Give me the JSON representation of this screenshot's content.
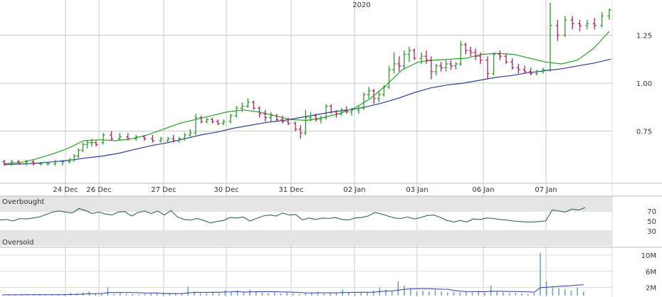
{
  "chart_data": [
    {
      "type": "ohlc",
      "year_label": "2020",
      "x_tick_labels": [
        "24 Dec",
        "26 Dec",
        "27 Dec",
        "30 Dec",
        "31 Dec",
        "02 Jan",
        "03 Jan",
        "06 Jan",
        "07 Jan"
      ],
      "y_tick_labels": [
        "1.25",
        "1.00",
        "0.75"
      ],
      "y_ticks": [
        1.25,
        1.0,
        0.75
      ],
      "ylim": [
        0.55,
        1.43
      ],
      "grid": true,
      "colors": {
        "up": "#2a9a2a",
        "down": "#b0205a",
        "ma_short": "#28a028",
        "ma_long": "#2b3f9e",
        "grid": "#c8c8c8"
      },
      "sessions": [
        {
          "label": "",
          "bars": [
            [
              0.59,
              0.6,
              0.57,
              0.58
            ],
            [
              0.58,
              0.6,
              0.57,
              0.59
            ],
            [
              0.59,
              0.6,
              0.58,
              0.58
            ],
            [
              0.58,
              0.6,
              0.57,
              0.59
            ],
            [
              0.59,
              0.6,
              0.57,
              0.58
            ],
            [
              0.58,
              0.59,
              0.57,
              0.58
            ],
            [
              0.58,
              0.59,
              0.57,
              0.58
            ],
            [
              0.58,
              0.6,
              0.57,
              0.59
            ],
            [
              0.59,
              0.6,
              0.57,
              0.59
            ]
          ]
        },
        {
          "label": "24 Dec",
          "bars": [
            [
              0.59,
              0.61,
              0.58,
              0.6
            ],
            [
              0.6,
              0.63,
              0.59,
              0.62
            ],
            [
              0.62,
              0.66,
              0.61,
              0.65
            ],
            [
              0.65,
              0.69,
              0.64,
              0.68
            ],
            [
              0.68,
              0.7,
              0.66,
              0.69
            ],
            [
              0.69,
              0.71,
              0.67,
              0.69
            ],
            [
              0.69,
              0.7,
              0.67,
              0.68
            ]
          ]
        },
        {
          "label": "26 Dec",
          "bars": [
            [
              0.69,
              0.74,
              0.68,
              0.73
            ],
            [
              0.73,
              0.75,
              0.7,
              0.71
            ],
            [
              0.71,
              0.74,
              0.7,
              0.72
            ],
            [
              0.72,
              0.74,
              0.7,
              0.71
            ],
            [
              0.71,
              0.73,
              0.7,
              0.72
            ],
            [
              0.72,
              0.73,
              0.7,
              0.71
            ],
            [
              0.71,
              0.73,
              0.69,
              0.7
            ],
            [
              0.7,
              0.72,
              0.69,
              0.71
            ]
          ]
        },
        {
          "label": "27 Dec",
          "bars": [
            [
              0.7,
              0.72,
              0.69,
              0.71
            ],
            [
              0.71,
              0.73,
              0.69,
              0.7
            ],
            [
              0.7,
              0.72,
              0.69,
              0.71
            ],
            [
              0.71,
              0.74,
              0.7,
              0.73
            ],
            [
              0.73,
              0.76,
              0.72,
              0.74
            ],
            [
              0.74,
              0.84,
              0.73,
              0.82
            ],
            [
              0.82,
              0.83,
              0.79,
              0.8
            ],
            [
              0.8,
              0.82,
              0.79,
              0.81
            ],
            [
              0.81,
              0.82,
              0.79,
              0.8
            ],
            [
              0.8,
              0.81,
              0.78,
              0.79
            ],
            [
              0.79,
              0.81,
              0.78,
              0.8
            ]
          ]
        },
        {
          "label": "30 Dec",
          "bars": [
            [
              0.8,
              0.84,
              0.79,
              0.83
            ],
            [
              0.83,
              0.88,
              0.82,
              0.87
            ],
            [
              0.87,
              0.9,
              0.85,
              0.88
            ],
            [
              0.88,
              0.92,
              0.87,
              0.9
            ],
            [
              0.9,
              0.91,
              0.86,
              0.87
            ],
            [
              0.87,
              0.88,
              0.82,
              0.84
            ],
            [
              0.84,
              0.86,
              0.8,
              0.82
            ],
            [
              0.82,
              0.85,
              0.8,
              0.83
            ],
            [
              0.83,
              0.84,
              0.8,
              0.81
            ],
            [
              0.81,
              0.83,
              0.79,
              0.8
            ],
            [
              0.8,
              0.82,
              0.78,
              0.79
            ]
          ]
        },
        {
          "label": "31 Dec",
          "bars": [
            [
              0.79,
              0.8,
              0.75,
              0.76
            ],
            [
              0.76,
              0.78,
              0.71,
              0.74
            ],
            [
              0.74,
              0.86,
              0.73,
              0.82
            ],
            [
              0.82,
              0.85,
              0.8,
              0.83
            ],
            [
              0.83,
              0.84,
              0.8,
              0.81
            ],
            [
              0.81,
              0.83,
              0.79,
              0.82
            ],
            [
              0.82,
              0.89,
              0.81,
              0.88
            ],
            [
              0.88,
              0.89,
              0.84,
              0.85
            ],
            [
              0.85,
              0.86,
              0.82,
              0.84
            ],
            [
              0.84,
              0.87,
              0.83,
              0.86
            ],
            [
              0.86,
              0.88,
              0.84,
              0.85
            ],
            [
              0.85,
              0.87,
              0.83,
              0.86
            ]
          ]
        },
        {
          "label": "02 Jan",
          "bars": [
            [
              0.86,
              0.88,
              0.84,
              0.87
            ],
            [
              0.87,
              0.95,
              0.86,
              0.94
            ],
            [
              0.94,
              0.98,
              0.92,
              0.96
            ],
            [
              0.96,
              0.97,
              0.89,
              0.92
            ],
            [
              0.92,
              0.96,
              0.9,
              0.94
            ],
            [
              0.94,
              0.99,
              0.93,
              0.98
            ],
            [
              0.98,
              1.09,
              0.97,
              1.07
            ],
            [
              1.07,
              1.16,
              1.05,
              1.1
            ],
            [
              1.1,
              1.14,
              1.06,
              1.09
            ],
            [
              1.09,
              1.17,
              1.07,
              1.15
            ],
            [
              1.15,
              1.19,
              1.11,
              1.17
            ],
            [
              1.17,
              1.18,
              1.12,
              1.13
            ]
          ]
        },
        {
          "label": "03 Jan",
          "bars": [
            [
              1.13,
              1.16,
              1.1,
              1.14
            ],
            [
              1.14,
              1.17,
              1.1,
              1.12
            ],
            [
              1.12,
              1.14,
              1.02,
              1.06
            ],
            [
              1.06,
              1.1,
              1.04,
              1.09
            ],
            [
              1.09,
              1.11,
              1.06,
              1.08
            ],
            [
              1.08,
              1.12,
              1.06,
              1.1
            ],
            [
              1.1,
              1.12,
              1.07,
              1.09
            ],
            [
              1.09,
              1.11,
              1.07,
              1.1
            ],
            [
              1.1,
              1.22,
              1.09,
              1.2
            ],
            [
              1.2,
              1.21,
              1.15,
              1.17
            ],
            [
              1.17,
              1.19,
              1.14,
              1.16
            ],
            [
              1.16,
              1.18,
              1.12,
              1.14
            ],
            [
              1.14,
              1.16,
              1.1,
              1.12
            ]
          ]
        },
        {
          "label": "06 Jan",
          "bars": [
            [
              1.12,
              1.14,
              1.02,
              1.05
            ],
            [
              1.05,
              1.16,
              1.04,
              1.15
            ],
            [
              1.15,
              1.17,
              1.12,
              1.14
            ],
            [
              1.14,
              1.15,
              1.1,
              1.11
            ],
            [
              1.11,
              1.13,
              1.07,
              1.08
            ],
            [
              1.08,
              1.1,
              1.05,
              1.07
            ],
            [
              1.07,
              1.09,
              1.05,
              1.06
            ],
            [
              1.06,
              1.08,
              1.04,
              1.05
            ],
            [
              1.05,
              1.07,
              1.04,
              1.06
            ],
            [
              1.06,
              1.08,
              1.05,
              1.07
            ]
          ]
        },
        {
          "label": "07 Jan",
          "bars": [
            [
              1.07,
              1.42,
              1.06,
              1.3
            ],
            [
              1.3,
              1.33,
              1.22,
              1.25
            ],
            [
              1.25,
              1.35,
              1.24,
              1.33
            ],
            [
              1.33,
              1.35,
              1.28,
              1.31
            ],
            [
              1.31,
              1.33,
              1.27,
              1.3
            ],
            [
              1.3,
              1.33,
              1.28,
              1.31
            ],
            [
              1.31,
              1.34,
              1.28,
              1.3
            ],
            [
              1.3,
              1.37,
              1.29,
              1.35
            ],
            [
              1.35,
              1.39,
              1.33,
              1.38
            ]
          ]
        }
      ],
      "ma_short": [
        0.58,
        0.586,
        0.605,
        0.63,
        0.66,
        0.7,
        0.705,
        0.7,
        0.71,
        0.73,
        0.76,
        0.79,
        0.81,
        0.83,
        0.85,
        0.86,
        0.85,
        0.83,
        0.81,
        0.806,
        0.82,
        0.84,
        0.87,
        0.92,
        0.99,
        1.07,
        1.11,
        1.12,
        1.125,
        1.13,
        1.15,
        1.155,
        1.15,
        1.13,
        1.11,
        1.1,
        1.12,
        1.18,
        1.27
      ],
      "ma_long": [
        0.575,
        0.578,
        0.583,
        0.59,
        0.598,
        0.61,
        0.62,
        0.635,
        0.655,
        0.675,
        0.69,
        0.71,
        0.73,
        0.745,
        0.765,
        0.78,
        0.795,
        0.805,
        0.82,
        0.835,
        0.85,
        0.86,
        0.875,
        0.895,
        0.92,
        0.95,
        0.975,
        0.99,
        1.0,
        1.015,
        1.03,
        1.04,
        1.055,
        1.065,
        1.075,
        1.09,
        1.105,
        1.125
      ]
    },
    {
      "type": "line",
      "label_top": "Overbought",
      "label_bottom": "Oversold",
      "y_tick_labels": [
        "70",
        "50",
        "30"
      ],
      "y_ticks": [
        70,
        50,
        30
      ],
      "ylim": [
        0,
        100
      ],
      "values": [
        52,
        53,
        50,
        55,
        54,
        56,
        58,
        63,
        68,
        70,
        68,
        66,
        75,
        71,
        65,
        68,
        64,
        62,
        68,
        69,
        60,
        67,
        70,
        65,
        70,
        62,
        71,
        58,
        53,
        52,
        55,
        51,
        46,
        49,
        51,
        57,
        56,
        58,
        50,
        55,
        60,
        62,
        60,
        66,
        62,
        63,
        52,
        56,
        53,
        56,
        55,
        57,
        53,
        52,
        56,
        57,
        60,
        67,
        64,
        60,
        56,
        55,
        58,
        54,
        57,
        61,
        62,
        57,
        51,
        48,
        51,
        48,
        54,
        53,
        56,
        55,
        53,
        52,
        50,
        49,
        48,
        48,
        49,
        50,
        72,
        70,
        68,
        74,
        72,
        77
      ]
    },
    {
      "type": "bar",
      "y_tick_labels": [
        "10M",
        "6M",
        "2M"
      ],
      "y_ticks": [
        10,
        6,
        2
      ],
      "ylim": [
        0,
        12
      ],
      "unit": "M",
      "values": [
        0.2,
        0.2,
        0.2,
        0.2,
        0.3,
        0.2,
        0.2,
        0.2,
        0.2,
        0.2,
        0.4,
        0.6,
        0.5,
        0.8,
        1.0,
        0.5,
        0.4,
        2.0,
        0.4,
        0.8,
        0.5,
        0.4,
        0.3,
        0.4,
        0.5,
        0.5,
        0.8,
        0.6,
        0.5,
        0.4,
        2.2,
        1.0,
        0.6,
        0.6,
        0.8,
        0.6,
        1.3,
        0.8,
        1.2,
        0.8,
        1.5,
        1.0,
        0.7,
        0.6,
        0.8,
        0.6,
        0.8,
        0.6,
        0.4,
        0.6,
        0.8,
        1.0,
        0.5,
        0.8,
        0.6,
        1.5,
        0.8,
        0.5,
        0.9,
        0.8,
        1.2,
        2.0,
        1.5,
        1.0,
        3.5,
        2.5,
        1.6,
        1.0,
        1.2,
        1.0,
        1.4,
        1.0,
        0.8,
        0.9,
        0.7,
        1.0,
        0.8,
        1.2,
        0.7,
        2.5,
        0.9,
        0.8,
        0.6,
        0.7,
        0.5,
        0.4,
        0.6,
        10.5,
        3.5,
        2.0,
        1.8,
        1.5,
        1.2,
        2.0,
        1.0
      ]
    }
  ]
}
